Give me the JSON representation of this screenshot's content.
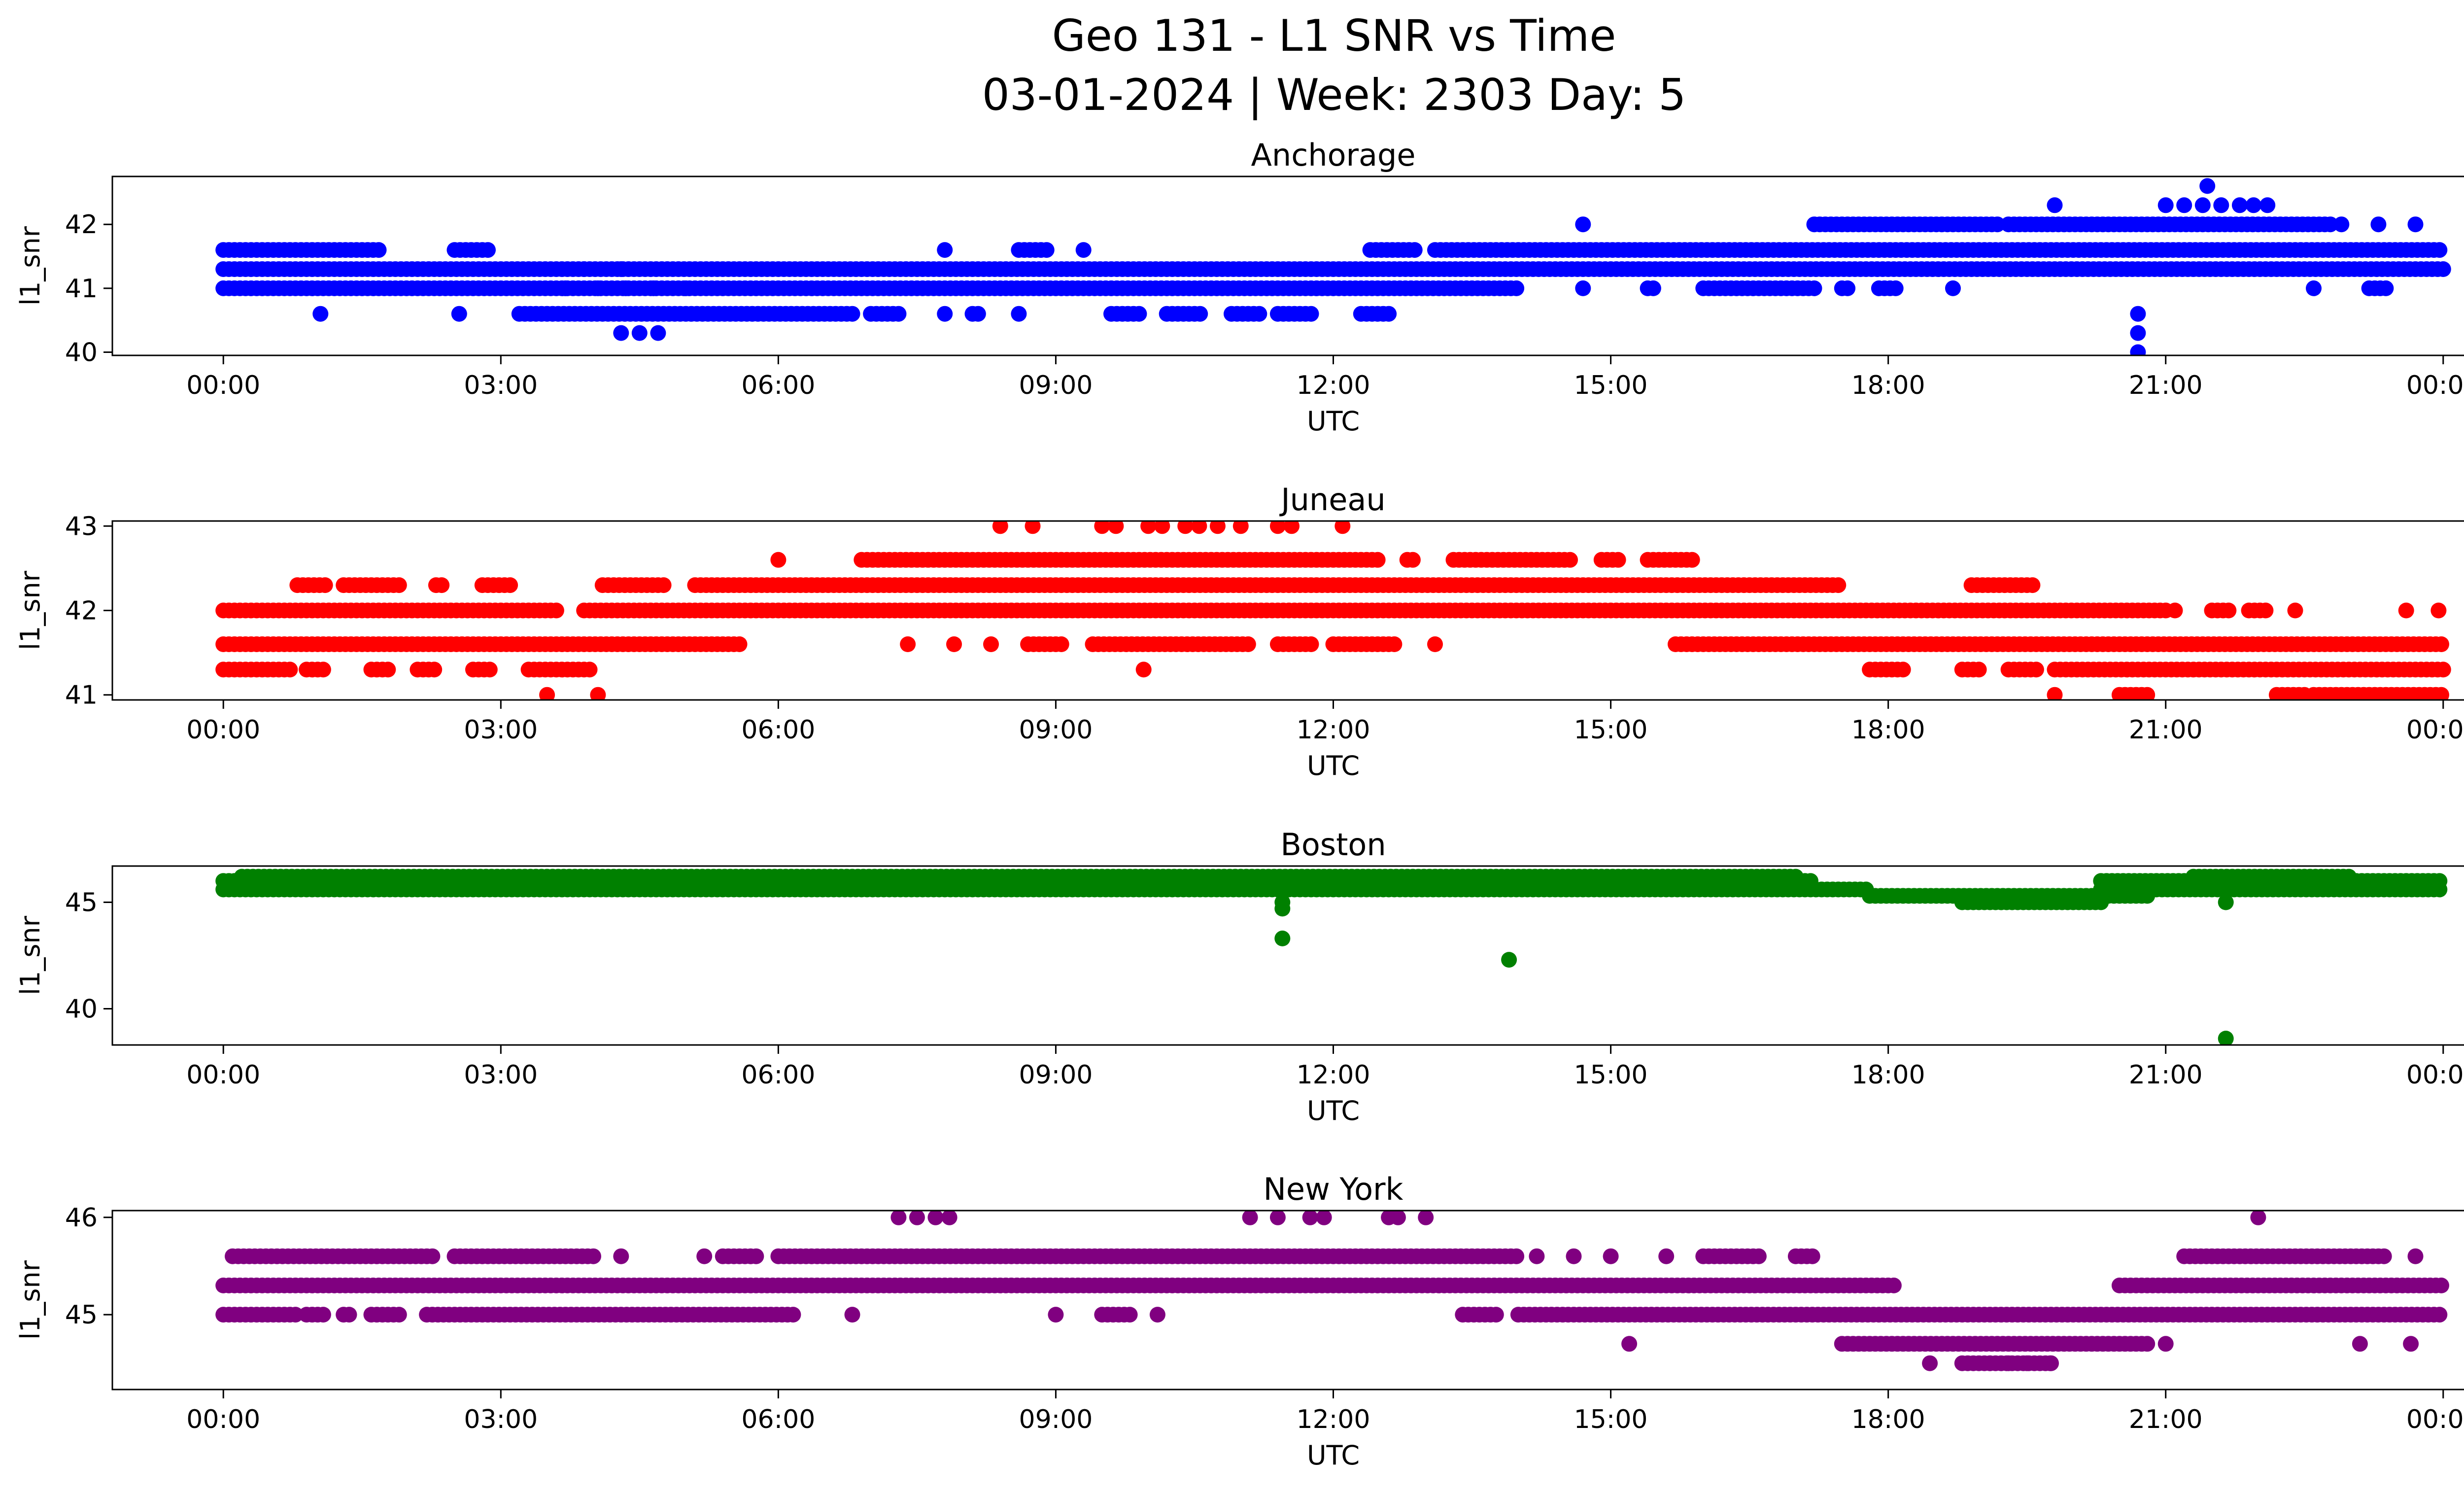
{
  "figure": {
    "title_line1": "Geo 131 - L1 SNR vs Time",
    "title_line2": "03-01-2024 | Week: 2303 Day: 5"
  },
  "chart_data": [
    {
      "type": "scatter",
      "title": "Anchorage",
      "xlabel": "UTC",
      "ylabel": "l1_snr",
      "color": "#0000ff",
      "xlim": [
        -1.2,
        25.2
      ],
      "ylim": [
        39.95,
        42.75
      ],
      "yticks": [
        40,
        41,
        42
      ],
      "xticks": [
        "00:00",
        "03:00",
        "06:00",
        "09:00",
        "12:00",
        "15:00",
        "18:00",
        "21:00",
        "00:00"
      ],
      "bands": [
        {
          "y": 41.0,
          "segments": [
            [
              0,
              14.0
            ],
            [
              14.7,
              14.7
            ],
            [
              15.4,
              15.5
            ],
            [
              16.0,
              17.2
            ],
            [
              17.5,
              17.6
            ],
            [
              17.9,
              18.1
            ],
            [
              18.7,
              18.7
            ],
            [
              22.6,
              22.6
            ],
            [
              23.2,
              23.4
            ]
          ]
        },
        {
          "y": 41.3,
          "segments": [
            [
              0,
              24.0
            ]
          ]
        },
        {
          "y": 41.6,
          "segments": [
            [
              0,
              1.7
            ],
            [
              2.5,
              2.9
            ],
            [
              7.8,
              7.8
            ],
            [
              8.6,
              8.9
            ],
            [
              9.3,
              9.3
            ],
            [
              12.4,
              12.9
            ],
            [
              13.1,
              24.0
            ]
          ]
        },
        {
          "y": 40.6,
          "segments": [
            [
              3.2,
              6.8
            ],
            [
              7.0,
              7.3
            ],
            [
              7.8,
              7.8
            ],
            [
              8.1,
              8.2
            ],
            [
              8.6,
              8.6
            ],
            [
              9.6,
              9.9
            ],
            [
              10.2,
              10.6
            ],
            [
              10.9,
              11.2
            ],
            [
              11.4,
              11.8
            ],
            [
              12.3,
              12.6
            ]
          ]
        },
        {
          "y": 42.0,
          "segments": [
            [
              17.2,
              19.2
            ],
            [
              19.3,
              22.8
            ]
          ]
        }
      ],
      "points": [
        [
          1.05,
          40.6
        ],
        [
          2.55,
          40.6
        ],
        [
          4.3,
          40.3
        ],
        [
          4.5,
          40.3
        ],
        [
          4.7,
          40.3
        ],
        [
          3.7,
          41.0
        ],
        [
          4.05,
          41.0
        ],
        [
          4.35,
          41.0
        ],
        [
          4.65,
          41.0
        ],
        [
          5.0,
          41.0
        ],
        [
          3.9,
          41.3
        ],
        [
          4.3,
          41.3
        ],
        [
          14.7,
          42.0
        ],
        [
          19.8,
          42.3
        ],
        [
          20.7,
          40.0
        ],
        [
          20.7,
          40.3
        ],
        [
          20.7,
          40.6
        ],
        [
          21.0,
          42.3
        ],
        [
          21.2,
          42.3
        ],
        [
          21.4,
          42.3
        ],
        [
          21.6,
          42.3
        ],
        [
          21.8,
          42.3
        ],
        [
          21.95,
          42.3
        ],
        [
          22.1,
          42.3
        ],
        [
          21.45,
          42.6
        ],
        [
          22.9,
          42.0
        ],
        [
          23.3,
          42.0
        ],
        [
          23.7,
          42.0
        ]
      ]
    },
    {
      "type": "scatter",
      "title": "Juneau",
      "xlabel": "UTC",
      "ylabel": "l1_snr",
      "color": "#ff0000",
      "xlim": [
        -1.2,
        25.2
      ],
      "ylim": [
        40.94,
        43.06
      ],
      "yticks": [
        41,
        42,
        43
      ],
      "xticks": [
        "00:00",
        "03:00",
        "06:00",
        "09:00",
        "12:00",
        "15:00",
        "18:00",
        "21:00",
        "00:00"
      ],
      "bands": [
        {
          "y": 41.3,
          "segments": [
            [
              0,
              0.75
            ],
            [
              0.9,
              1.1
            ],
            [
              1.6,
              1.8
            ],
            [
              2.1,
              2.3
            ],
            [
              2.7,
              2.9
            ],
            [
              3.3,
              4.0
            ],
            [
              17.8,
              18.2
            ],
            [
              18.8,
              19.0
            ],
            [
              19.3,
              19.6
            ],
            [
              19.8,
              24.0
            ]
          ]
        },
        {
          "y": 41.6,
          "segments": [
            [
              0,
              5.6
            ],
            [
              7.4,
              7.4
            ],
            [
              7.9,
              7.9
            ],
            [
              8.3,
              8.3
            ],
            [
              8.7,
              9.1
            ],
            [
              9.4,
              11.1
            ],
            [
              11.4,
              11.8
            ],
            [
              12.0,
              12.7
            ],
            [
              13.1,
              13.1
            ],
            [
              15.7,
              24.0
            ]
          ]
        },
        {
          "y": 42.0,
          "segments": [
            [
              0,
              3.6
            ],
            [
              3.9,
              21.0
            ],
            [
              21.5,
              21.7
            ],
            [
              21.9,
              22.1
            ]
          ]
        },
        {
          "y": 42.3,
          "segments": [
            [
              0.8,
              1.1
            ],
            [
              1.3,
              1.9
            ],
            [
              2.3,
              2.4
            ],
            [
              2.8,
              3.1
            ],
            [
              4.1,
              4.8
            ],
            [
              5.1,
              17.5
            ],
            [
              18.9,
              19.6
            ]
          ]
        },
        {
          "y": 42.6,
          "segments": [
            [
              6.9,
              12.5
            ],
            [
              12.8,
              12.9
            ],
            [
              13.3,
              14.6
            ],
            [
              14.9,
              15.1
            ],
            [
              15.4,
              15.9
            ]
          ]
        },
        {
          "y": 41.0,
          "segments": [
            [
              20.5,
              20.8
            ],
            [
              22.2,
              22.5
            ],
            [
              22.6,
              24.0
            ]
          ]
        }
      ],
      "points": [
        [
          3.5,
          41.0
        ],
        [
          4.05,
          41.0
        ],
        [
          6.0,
          42.6
        ],
        [
          9.95,
          41.3
        ],
        [
          19.8,
          41.0
        ],
        [
          8.4,
          43.0
        ],
        [
          8.75,
          43.0
        ],
        [
          9.5,
          43.0
        ],
        [
          9.65,
          43.0
        ],
        [
          10.0,
          43.0
        ],
        [
          10.15,
          43.0
        ],
        [
          10.4,
          43.0
        ],
        [
          10.55,
          43.0
        ],
        [
          10.75,
          43.0
        ],
        [
          11.0,
          43.0
        ],
        [
          11.4,
          43.0
        ],
        [
          11.55,
          43.0
        ],
        [
          12.1,
          43.0
        ],
        [
          21.1,
          42.0
        ],
        [
          22.4,
          42.0
        ],
        [
          23.6,
          42.0
        ],
        [
          23.95,
          42.0
        ]
      ]
    },
    {
      "type": "scatter",
      "title": "Boston",
      "xlabel": "UTC",
      "ylabel": "l1_snr",
      "color": "#008000",
      "xlim": [
        -1.2,
        25.2
      ],
      "ylim": [
        38.3,
        46.7
      ],
      "yticks": [
        40,
        45
      ],
      "xticks": [
        "00:00",
        "03:00",
        "06:00",
        "09:00",
        "12:00",
        "15:00",
        "18:00",
        "21:00",
        "00:00"
      ],
      "bands": [
        {
          "y": 45.6,
          "segments": [
            [
              0,
              17.8
            ]
          ]
        },
        {
          "y": 46.0,
          "segments": [
            [
              0,
              17.2
            ],
            [
              20.3,
              24.0
            ]
          ]
        },
        {
          "y": 46.2,
          "segments": [
            [
              0.2,
              17.0
            ],
            [
              21.3,
              23.0
            ]
          ]
        },
        {
          "y": 45.3,
          "segments": [
            [
              17.8,
              20.8
            ]
          ]
        },
        {
          "y": 45.0,
          "segments": [
            [
              18.8,
              20.3
            ]
          ]
        },
        {
          "y": 45.6,
          "segments": [
            [
              20.3,
              24.0
            ]
          ]
        }
      ],
      "points": [
        [
          11.45,
          45.0
        ],
        [
          11.45,
          44.7
        ],
        [
          11.45,
          43.3
        ],
        [
          13.9,
          42.3
        ],
        [
          21.65,
          45.0
        ],
        [
          21.65,
          38.6
        ]
      ]
    },
    {
      "type": "scatter",
      "title": "New York",
      "xlabel": "UTC",
      "ylabel": "l1_snr",
      "color": "#800080",
      "xlim": [
        -1.2,
        25.2
      ],
      "ylim": [
        44.23,
        46.07
      ],
      "yticks": [
        45,
        46
      ],
      "xticks": [
        "00:00",
        "03:00",
        "06:00",
        "09:00",
        "12:00",
        "15:00",
        "18:00",
        "21:00",
        "00:00"
      ],
      "bands": [
        {
          "y": 45.0,
          "segments": [
            [
              0,
              0.8
            ],
            [
              0.9,
              1.1
            ],
            [
              1.3,
              1.4
            ],
            [
              1.6,
              1.9
            ],
            [
              2.2,
              6.2
            ],
            [
              6.8,
              6.8
            ],
            [
              9.0,
              9.0
            ],
            [
              9.5,
              9.8
            ],
            [
              10.1,
              10.1
            ],
            [
              13.4,
              13.8
            ],
            [
              14.0,
              24.0
            ]
          ]
        },
        {
          "y": 45.3,
          "segments": [
            [
              0,
              18.1
            ],
            [
              20.5,
              24.0
            ]
          ]
        },
        {
          "y": 45.6,
          "segments": [
            [
              0.1,
              2.3
            ],
            [
              2.5,
              4.0
            ],
            [
              4.3,
              4.3
            ],
            [
              5.2,
              5.2
            ],
            [
              5.4,
              5.8
            ],
            [
              6.0,
              14.0
            ],
            [
              14.2,
              14.2
            ],
            [
              14.6,
              14.6
            ],
            [
              15.0,
              15.0
            ],
            [
              15.6,
              15.6
            ],
            [
              16.0,
              16.6
            ],
            [
              17.0,
              17.2
            ],
            [
              21.2,
              23.4
            ],
            [
              23.7,
              23.7
            ]
          ]
        },
        {
          "y": 44.7,
          "segments": [
            [
              17.5,
              20.8
            ]
          ]
        },
        {
          "y": 44.5,
          "segments": [
            [
              18.8,
              19.8
            ]
          ]
        }
      ],
      "points": [
        [
          7.3,
          46.0
        ],
        [
          7.5,
          46.0
        ],
        [
          7.7,
          46.0
        ],
        [
          7.85,
          46.0
        ],
        [
          11.1,
          46.0
        ],
        [
          11.4,
          46.0
        ],
        [
          11.75,
          46.0
        ],
        [
          11.9,
          46.0
        ],
        [
          12.6,
          46.0
        ],
        [
          12.7,
          46.0
        ],
        [
          13.0,
          46.0
        ],
        [
          22.0,
          46.0
        ],
        [
          15.2,
          44.7
        ],
        [
          21.0,
          44.7
        ],
        [
          23.1,
          44.7
        ],
        [
          23.65,
          44.7
        ],
        [
          18.45,
          44.5
        ],
        [
          19.1,
          44.5
        ],
        [
          19.3,
          44.5
        ],
        [
          19.5,
          44.5
        ],
        [
          19.75,
          44.5
        ]
      ]
    }
  ]
}
